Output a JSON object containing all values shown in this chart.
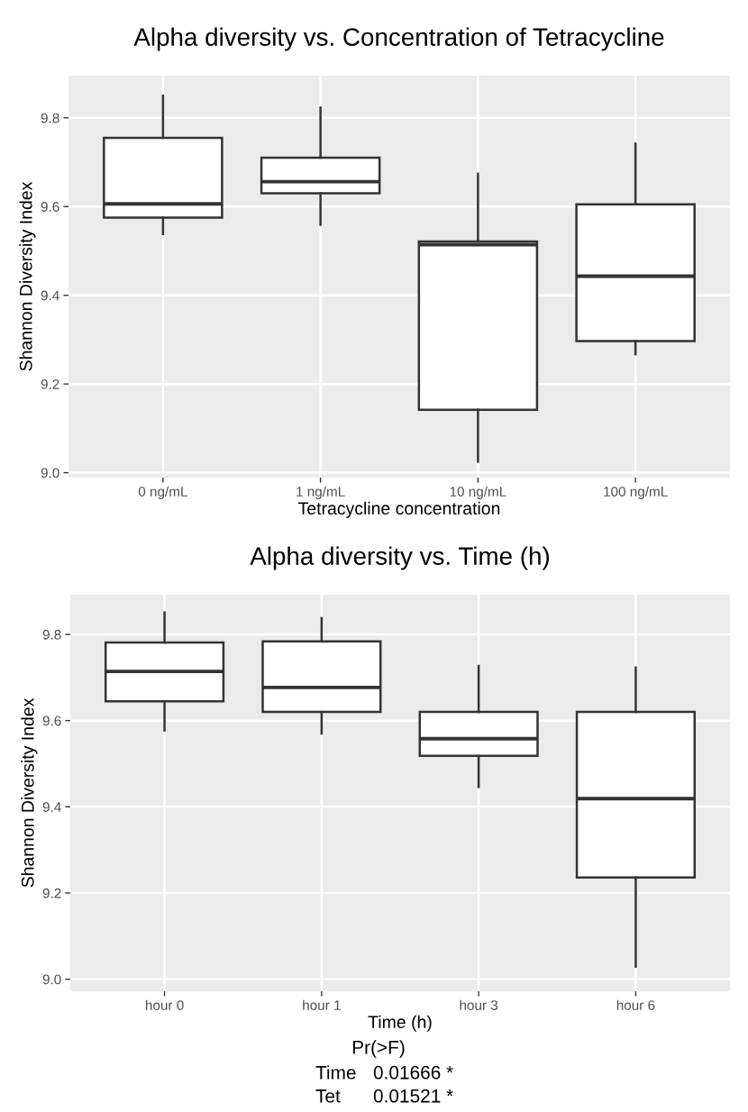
{
  "chart_data": [
    {
      "type": "box",
      "title": "Alpha diversity vs. Concentration of Tetracycline",
      "xlabel": "Tetracycline concentration",
      "ylabel": "Shannon Diversity Index",
      "categories": [
        "0 ng/mL",
        "1 ng/mL",
        "10 ng/mL",
        "100 ng/mL"
      ],
      "boxes": [
        {
          "low": 9.538,
          "q1": 9.575,
          "median": 9.606,
          "q3": 9.755,
          "high": 9.85
        },
        {
          "low": 9.559,
          "q1": 9.63,
          "median": 9.656,
          "q3": 9.71,
          "high": 9.823
        },
        {
          "low": 9.025,
          "q1": 9.142,
          "median": 9.514,
          "q3": 9.521,
          "high": 9.674
        },
        {
          "low": 9.267,
          "q1": 9.297,
          "median": 9.443,
          "q3": 9.605,
          "high": 9.742
        }
      ],
      "ylim": [
        8.989,
        9.895
      ],
      "yticks": [
        {
          "value": 9.0,
          "label": "9.0"
        },
        9.2,
        9.4,
        9.6,
        9.8
      ],
      "grid": true
    },
    {
      "type": "box",
      "title": "Alpha diversity vs. Time (h)",
      "xlabel": "Time (h)",
      "ylabel": "Shannon Diversity Index",
      "categories": [
        "hour 0",
        "hour 1",
        "hour 3",
        "hour 6"
      ],
      "boxes": [
        {
          "low": 9.577,
          "q1": 9.645,
          "median": 9.714,
          "q3": 9.781,
          "high": 9.851
        },
        {
          "low": 9.57,
          "q1": 9.62,
          "median": 9.677,
          "q3": 9.784,
          "high": 9.838
        },
        {
          "low": 9.446,
          "q1": 9.518,
          "median": 9.558,
          "q3": 9.62,
          "high": 9.727
        },
        {
          "low": 9.029,
          "q1": 9.236,
          "median": 9.419,
          "q3": 9.62,
          "high": 9.723
        }
      ],
      "ylim": [
        8.972,
        9.892
      ],
      "yticks": [
        {
          "value": 9.0,
          "label": "9.0"
        },
        9.2,
        9.4,
        9.6,
        9.8
      ],
      "grid": true,
      "annotations": [
        "Pr(>F)",
        "Time",
        "0.01666 *",
        "Tet",
        "0.01521 *"
      ]
    }
  ]
}
